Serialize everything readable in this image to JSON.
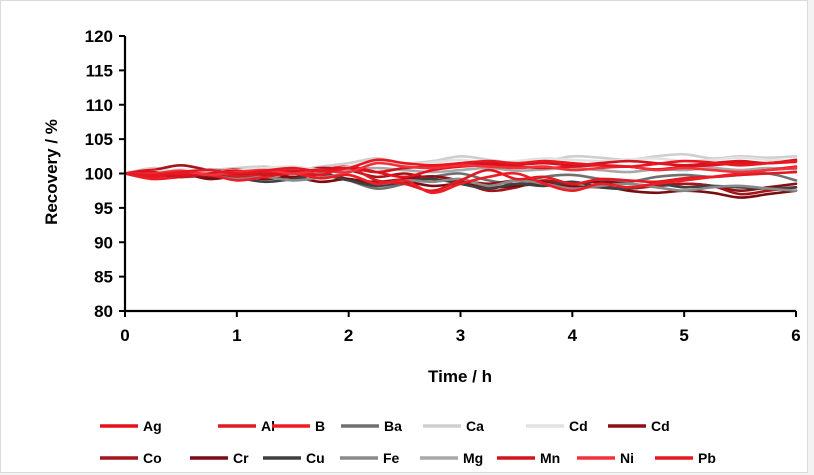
{
  "chart_data": {
    "type": "line",
    "title": "",
    "xlabel": "Time / h",
    "ylabel": "Recovery / %",
    "xlim": [
      0,
      6
    ],
    "ylim": [
      80,
      120
    ],
    "x_ticks": [
      "0",
      "1",
      "2",
      "3",
      "4",
      "5",
      "6"
    ],
    "y_ticks": [
      "80",
      "85",
      "90",
      "95",
      "100",
      "105",
      "110",
      "115",
      "120"
    ],
    "grid": false,
    "legend_position": "bottom",
    "x": [
      0,
      0.25,
      0.5,
      0.75,
      1,
      1.25,
      1.5,
      1.75,
      2,
      2.25,
      2.5,
      2.75,
      3,
      3.25,
      3.5,
      3.75,
      4,
      4.25,
      4.5,
      4.75,
      5,
      5.25,
      5.5,
      5.75,
      6
    ],
    "series": [
      {
        "name": "Ag",
        "color": "#e8101c",
        "values": [
          100,
          100.5,
          99.8,
          100.2,
          100.6,
          100.3,
          100,
          100.5,
          101,
          100.2,
          99.5,
          100.5,
          101,
          101.2,
          101,
          100.8,
          101,
          101.2,
          101,
          100.6,
          101,
          101.2,
          101.5,
          101.5,
          101.7
        ]
      },
      {
        "name": "Al",
        "color": "#e01a22",
        "values": [
          100,
          99.5,
          100,
          100.3,
          99.6,
          100,
          100.4,
          99.8,
          100.8,
          99,
          98.5,
          97.5,
          99,
          100.5,
          99.2,
          99.5,
          98.5,
          99.2,
          99,
          98.8,
          99.3,
          99.5,
          99.8,
          100,
          100.2
        ]
      },
      {
        "name": "B",
        "color": "#f01c24",
        "values": [
          100,
          99.2,
          99.5,
          99.8,
          99,
          99.5,
          100,
          99.3,
          99.8,
          98.5,
          99,
          97.2,
          98.5,
          99.5,
          100,
          98.5,
          97.5,
          98.5,
          98,
          98.5,
          99,
          99.5,
          100,
          100.5,
          101
        ]
      },
      {
        "name": "Ba",
        "color": "#707070",
        "values": [
          100,
          100.3,
          99.5,
          99.8,
          100,
          99.6,
          100.2,
          99.8,
          99,
          97.8,
          98.5,
          99.5,
          100,
          99,
          98.5,
          99.5,
          99.8,
          99.2,
          98.8,
          99.5,
          99.8,
          99.5,
          99.8,
          100,
          99
        ]
      },
      {
        "name": "Ca",
        "color": "#cfcfcf",
        "values": [
          100,
          100.8,
          100.3,
          100.5,
          100.8,
          101,
          100.5,
          101,
          101.5,
          102.2,
          101.5,
          101.8,
          102.5,
          102,
          101.5,
          101.8,
          102.5,
          102.3,
          102,
          102.5,
          102.8,
          102.2,
          102.5,
          102.3,
          102.5
        ]
      },
      {
        "name": "Cd",
        "color": "#e2e2e2",
        "values": [
          100,
          100.2,
          100.6,
          100.3,
          100.5,
          100.8,
          101,
          100.6,
          101,
          101.8,
          101.3,
          101.6,
          102,
          101.5,
          101.8,
          102.2,
          102,
          101.8,
          102,
          102.2,
          101.8,
          102,
          102.3,
          102,
          101.8
        ]
      },
      {
        "name": "Cd",
        "color": "#8b0f14",
        "values": [
          100,
          99.6,
          100.2,
          99.5,
          99.8,
          100.2,
          99.5,
          100,
          99.2,
          98.8,
          99.2,
          99.6,
          99,
          98.5,
          99,
          98.8,
          98.5,
          98.8,
          98.5,
          98.2,
          98.5,
          98.2,
          97.5,
          98,
          98.5
        ]
      },
      {
        "name": "Co",
        "color": "#a3151b",
        "values": [
          100,
          100.5,
          101.2,
          100.5,
          100.2,
          100.8,
          100.3,
          100.8,
          100.5,
          99.5,
          100,
          99.2,
          98.8,
          97.5,
          98,
          99,
          98.2,
          98,
          97.8,
          98.2,
          98.5,
          98.2,
          97,
          97.5,
          98
        ]
      },
      {
        "name": "Cr",
        "color": "#7a0d12",
        "values": [
          100,
          99.5,
          100,
          99.2,
          99.6,
          99.2,
          99.5,
          98.8,
          99.2,
          98.5,
          98.8,
          98.2,
          98.5,
          98,
          98.2,
          98.5,
          98,
          98.2,
          97.5,
          97.2,
          97.5,
          97.2,
          96.5,
          97,
          97.5
        ]
      },
      {
        "name": "Cu",
        "color": "#404040",
        "values": [
          100,
          99.8,
          99.5,
          100,
          99.4,
          98.8,
          99.2,
          99.8,
          99,
          98.2,
          98.8,
          99.2,
          98.5,
          97.8,
          98.5,
          98.2,
          98.8,
          98,
          97.8,
          98.5,
          98,
          98.2,
          98,
          97.8,
          98
        ]
      },
      {
        "name": "Fe",
        "color": "#8a8a8a",
        "values": [
          100,
          99.5,
          100.2,
          99.8,
          99.2,
          99.5,
          99,
          99.4,
          99.8,
          98.5,
          99,
          98.8,
          99.2,
          98.2,
          99,
          98.5,
          97.8,
          98.2,
          98.5,
          98,
          97.5,
          98,
          98.2,
          97.8,
          97.5
        ]
      },
      {
        "name": "Mg",
        "color": "#a8a8a8",
        "values": [
          100,
          100.4,
          99.8,
          100.6,
          100.2,
          100.8,
          100.5,
          100.2,
          100.6,
          100.8,
          100.5,
          100.2,
          100.5,
          100.8,
          100.4,
          100.6,
          100.8,
          100.5,
          100.2,
          100.6,
          100.5,
          100.8,
          100.5,
          100.8,
          100.6
        ]
      },
      {
        "name": "Mn",
        "color": "#d3141e",
        "values": [
          100,
          100.2,
          99.5,
          100,
          100.4,
          99.8,
          100.2,
          100.6,
          100.8,
          100.2,
          100.8,
          101,
          101.2,
          101.5,
          101.3,
          101.5,
          101.2,
          101.5,
          101.8,
          101.5,
          101.2,
          101.5,
          101.8,
          101.5,
          102
        ]
      },
      {
        "name": "Ni",
        "color": "#f2323a",
        "values": [
          100,
          100,
          100.4,
          99.8,
          100.2,
          100.5,
          100,
          100.4,
          100.2,
          101.5,
          101,
          100.8,
          101.2,
          101,
          100.8,
          101,
          100.5,
          100.8,
          101,
          100.5,
          100.8,
          100.5,
          100.2,
          100.5,
          100.8
        ]
      },
      {
        "name": "Pb",
        "color": "#e81822",
        "values": [
          100,
          99.8,
          100.2,
          100.5,
          100,
          100.4,
          100.8,
          100.3,
          100.8,
          102,
          101.5,
          101.2,
          101.5,
          101.8,
          101.5,
          101.8,
          101.5,
          101.2,
          101,
          101.4,
          101.8,
          101.6,
          101.2,
          101.5,
          101.8
        ]
      }
    ]
  }
}
